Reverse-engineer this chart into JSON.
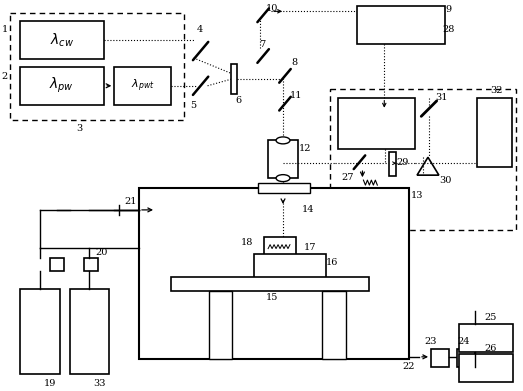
{
  "bg": "#ffffff",
  "lc": "#000000",
  "figsize": [
    5.23,
    3.91
  ],
  "dpi": 100
}
